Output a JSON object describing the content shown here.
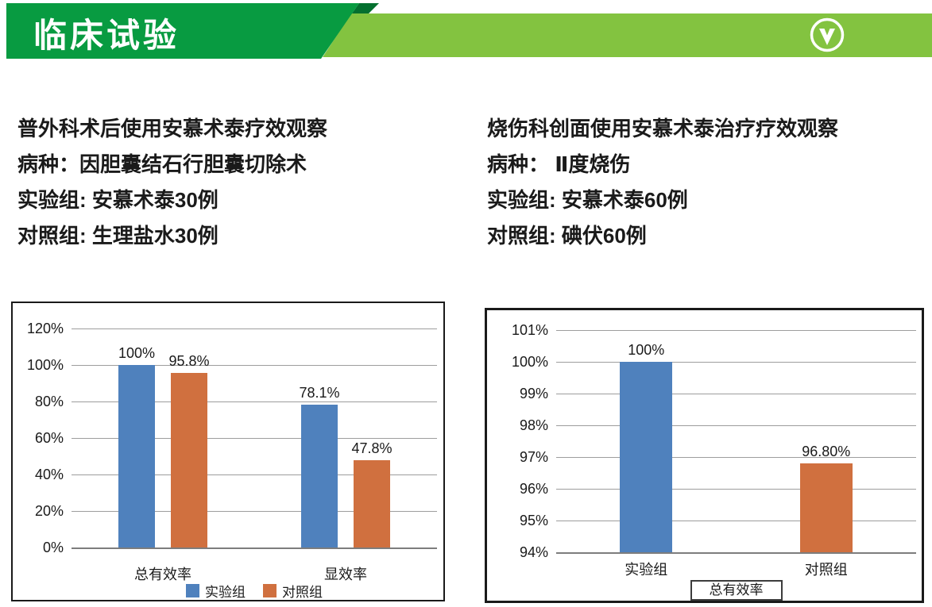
{
  "header": {
    "title": "临床试验",
    "icon": "chevron-down-circle",
    "colors": {
      "banner_dark_green": "#089b41",
      "fold_dark_green": "#04702f",
      "strip_light_green": "#83c340",
      "title_text": "#ffffff"
    }
  },
  "studies": [
    {
      "lines": [
        "普外科术后使用安慕术泰疗效观察",
        "病种：因胆囊结石行胆囊切除术",
        "实验组: 安慕术泰30例",
        "对照组: 生理盐水30例"
      ]
    },
    {
      "lines": [
        "烧伤科创面使用安慕术泰治疗疗效观察",
        "病种： Ⅱ度烧伤",
        "实验组: 安慕术泰60例",
        "对照组: 碘伏60例"
      ]
    }
  ],
  "chart_data": [
    {
      "type": "bar",
      "title": "",
      "categories": [
        "总有效率",
        "显效率"
      ],
      "series": [
        {
          "name": "实验组",
          "color": "#4f81bd",
          "values": [
            100,
            78.1
          ],
          "labels": [
            "100%",
            "78.1%"
          ]
        },
        {
          "name": "对照组",
          "color": "#d0703f",
          "values": [
            95.8,
            47.8
          ],
          "labels": [
            "95.8%",
            "47.8%"
          ]
        }
      ],
      "y_axis": {
        "min": 0,
        "max": 120,
        "step": 20,
        "tick_labels": [
          "0%",
          "20%",
          "40%",
          "60%",
          "80%",
          "100%",
          "120%"
        ]
      },
      "grid": true,
      "legend": {
        "position": "bottom",
        "bordered": false
      }
    },
    {
      "type": "bar",
      "title": "",
      "categories": [
        "实验组",
        "对照组"
      ],
      "series": [
        {
          "name": "总有效率",
          "colors": [
            "#4f81bd",
            "#d0703f"
          ],
          "values": [
            100,
            96.8
          ],
          "labels": [
            "100%",
            "96.80%"
          ]
        }
      ],
      "y_axis": {
        "min": 94,
        "max": 101,
        "step": 1,
        "tick_labels": [
          "94%",
          "95%",
          "96%",
          "97%",
          "98%",
          "99%",
          "100%",
          "101%"
        ]
      },
      "grid": true,
      "legend": {
        "position": "bottom",
        "bordered": true,
        "label": "总有效率"
      }
    }
  ]
}
